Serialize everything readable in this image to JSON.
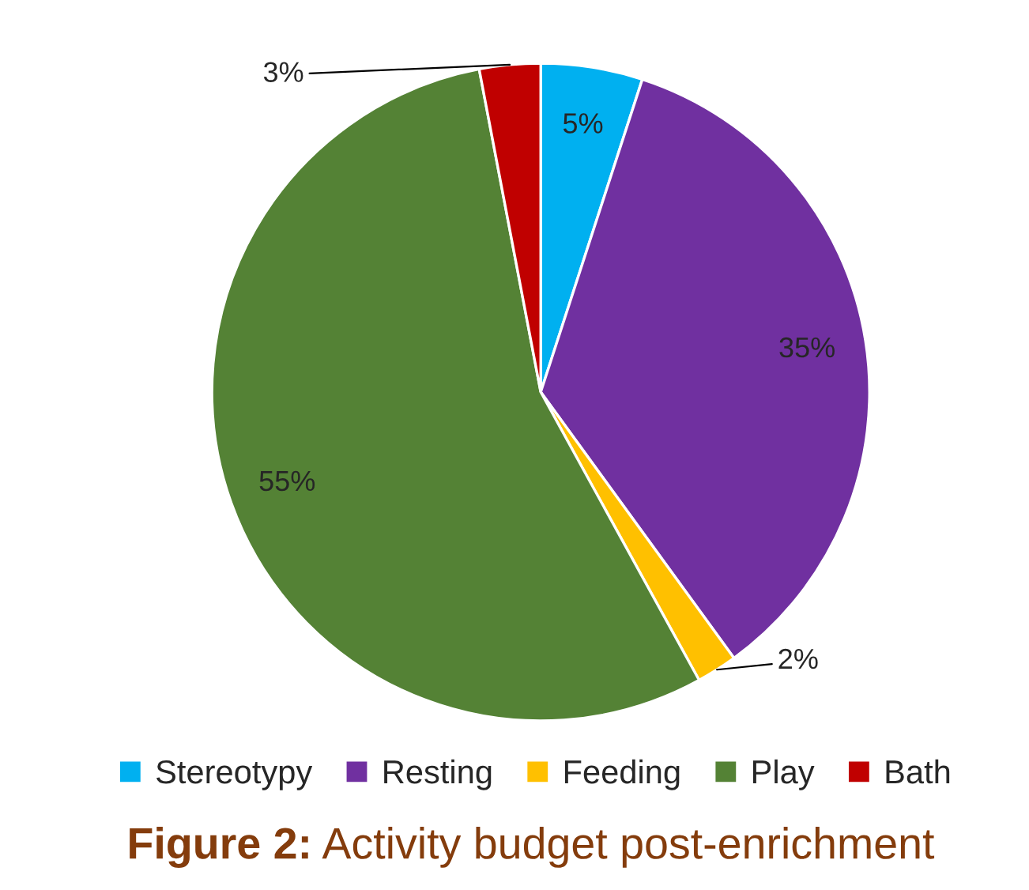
{
  "chart_data": {
    "type": "pie",
    "title": "Figure 2: Activity budget post-enrichment",
    "categories": [
      "Stereotypy",
      "Resting",
      "Feeding",
      "Play",
      "Bath"
    ],
    "values": [
      5,
      35,
      2,
      55,
      3
    ],
    "colors": [
      "#00b0f0",
      "#7030a0",
      "#ffc000",
      "#548235",
      "#c00000"
    ],
    "value_labels": [
      "5%",
      "35%",
      "2%",
      "55%",
      "3%"
    ],
    "legend": "bottom"
  }
}
